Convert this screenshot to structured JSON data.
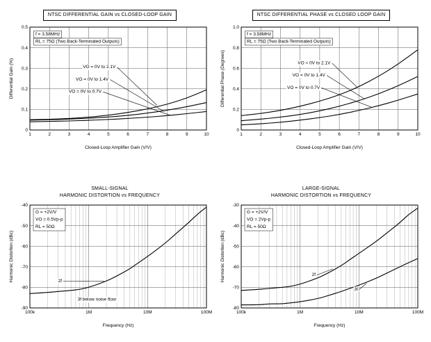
{
  "page": {
    "background": "#ffffff",
    "text_color": "#000000",
    "grid_color": "#555555",
    "curve_color": "#000000"
  },
  "chart_data": [
    {
      "type": "line",
      "title": "NTSC DIFFERENTIAL GAIN vs CLOSED-LOOP GAIN",
      "xlabel": "Closed-Loop Amplifier Gain (V/V)",
      "ylabel": "Differential Gain (%)",
      "x_scale": "linear",
      "xlim": [
        1,
        10
      ],
      "ylim": [
        0,
        0.5
      ],
      "xticks": [
        1,
        2,
        3,
        4,
        5,
        6,
        7,
        8,
        9,
        10
      ],
      "xtick_labels": [
        "1",
        "2",
        "3",
        "4",
        "5",
        "6",
        "7",
        "8",
        "9",
        "10"
      ],
      "yticks": [
        0,
        0.1,
        0.2,
        0.3,
        0.4,
        0.5
      ],
      "ytick_labels": [
        "0",
        "0.1",
        "0.2",
        "0.3",
        "0.4",
        "0.5"
      ],
      "grid": true,
      "legend_position": "none",
      "conditions": [
        "f = 3.58MHz",
        "RL = 75Ω (Two Back-Terminated Outputs)"
      ],
      "cond_boxes": "line",
      "series": [
        {
          "name": "VO = 0V to 2.1V",
          "x": [
            1,
            2,
            3,
            4,
            5,
            6,
            7,
            8,
            9,
            10
          ],
          "y": [
            0.05,
            0.052,
            0.056,
            0.062,
            0.072,
            0.085,
            0.102,
            0.125,
            0.155,
            0.195
          ]
        },
        {
          "name": "VO = 0V to 1.4V",
          "x": [
            1,
            2,
            3,
            4,
            5,
            6,
            7,
            8,
            9,
            10
          ],
          "y": [
            0.048,
            0.05,
            0.053,
            0.057,
            0.063,
            0.071,
            0.082,
            0.096,
            0.113,
            0.133
          ]
        },
        {
          "name": "VO = 0V to 0.7V",
          "x": [
            1,
            2,
            3,
            4,
            5,
            6,
            7,
            8,
            9,
            10
          ],
          "y": [
            0.04,
            0.042,
            0.044,
            0.047,
            0.051,
            0.056,
            0.062,
            0.07,
            0.079,
            0.09
          ]
        }
      ],
      "labels": [
        {
          "text": "VO = 0V to 2.1V",
          "tx": 0.3,
          "ty": 0.4,
          "px": 0.72,
          "py": 0.76
        },
        {
          "text": "VO = 0V to 1.4V",
          "tx": 0.26,
          "ty": 0.52,
          "px": 0.76,
          "py": 0.82
        },
        {
          "text": "VO = 0V to 0.7V",
          "tx": 0.22,
          "ty": 0.64,
          "px": 0.8,
          "py": 0.86
        }
      ]
    },
    {
      "type": "line",
      "title": "NTSC DIFFERENTIAL PHASE vs CLOSED LOOP GAIN",
      "xlabel": "Closed-Loop Amplifier Gain (V/V)",
      "ylabel": "Differential Phase (Degrees)",
      "x_scale": "linear",
      "xlim": [
        1,
        10
      ],
      "ylim": [
        0,
        1.0
      ],
      "xticks": [
        1,
        2,
        3,
        4,
        5,
        6,
        7,
        8,
        9,
        10
      ],
      "xtick_labels": [
        "1",
        "2",
        "3",
        "4",
        "5",
        "6",
        "7",
        "8",
        "9",
        "10"
      ],
      "yticks": [
        0,
        0.2,
        0.4,
        0.6,
        0.8,
        1.0
      ],
      "ytick_labels": [
        "0",
        "0.2",
        "0.4",
        "0.6",
        "0.8",
        "1.0"
      ],
      "grid": true,
      "legend_position": "none",
      "conditions": [
        "f = 3.58MHz",
        "RL = 75Ω (Two Back-Terminated Outputs)"
      ],
      "cond_boxes": "line",
      "series": [
        {
          "name": "VO = 0V to 2.1V",
          "x": [
            1,
            2,
            3,
            4,
            5,
            6,
            7,
            8,
            9,
            10
          ],
          "y": [
            0.14,
            0.16,
            0.19,
            0.23,
            0.28,
            0.34,
            0.42,
            0.52,
            0.64,
            0.78
          ]
        },
        {
          "name": "VO = 0V to 1.4V",
          "x": [
            1,
            2,
            3,
            4,
            5,
            6,
            7,
            8,
            9,
            10
          ],
          "y": [
            0.09,
            0.105,
            0.125,
            0.15,
            0.185,
            0.23,
            0.285,
            0.35,
            0.43,
            0.52
          ]
        },
        {
          "name": "VO = 0V to 0.7V",
          "x": [
            1,
            2,
            3,
            4,
            5,
            6,
            7,
            8,
            9,
            10
          ],
          "y": [
            0.05,
            0.06,
            0.075,
            0.095,
            0.12,
            0.15,
            0.19,
            0.235,
            0.29,
            0.35
          ]
        }
      ],
      "labels": [
        {
          "text": "VO = 0V to 2.1V",
          "tx": 0.32,
          "ty": 0.36,
          "px": 0.66,
          "py": 0.59
        },
        {
          "text": "VO = 0V to 1.4V",
          "tx": 0.29,
          "ty": 0.48,
          "px": 0.7,
          "py": 0.7
        },
        {
          "text": "VO = 0V to 0.7V",
          "tx": 0.26,
          "ty": 0.6,
          "px": 0.74,
          "py": 0.78
        }
      ]
    },
    {
      "type": "line",
      "title": "SMALL-SIGNAL\nHARMONIC DISTORTION vs FREQUENCY",
      "xlabel": "Frequency (Hz)",
      "ylabel": "Harmonic Distortion (dBc)",
      "x_scale": "log",
      "xlim": [
        100000.0,
        100000000.0
      ],
      "ylim": [
        -90,
        -40
      ],
      "xticks": [
        100000.0,
        1000000.0,
        10000000.0,
        100000000.0
      ],
      "xtick_labels": [
        "100k",
        "1M",
        "10M",
        "100M"
      ],
      "yticks": [
        -90,
        -80,
        -70,
        -60,
        -50,
        -40
      ],
      "ytick_labels": [
        "-90",
        "-80",
        "-70",
        "-60",
        "-50",
        "-40"
      ],
      "grid": true,
      "legend_position": "none",
      "conditions": [
        "G  = +2V/V",
        "VO = 0.5Vp-p",
        "RL = 50Ω"
      ],
      "cond_boxes": "block",
      "series": [
        {
          "name": "2f",
          "x": [
            100000.0,
            200000.0,
            300000.0,
            500000.0,
            700000.0,
            1000000.0,
            2000000.0,
            3000000.0,
            5000000.0,
            7000000.0,
            10000000.0,
            20000000.0,
            30000000.0,
            50000000.0,
            70000000.0,
            100000000.0
          ],
          "y": [
            -83,
            -82.5,
            -82,
            -81.5,
            -81,
            -80,
            -77,
            -74.5,
            -71,
            -68,
            -65,
            -58.5,
            -54,
            -48.5,
            -44.5,
            -41
          ]
        }
      ],
      "labels": [
        {
          "text": "2f",
          "tx": 0.16,
          "ty": 0.75,
          "px": 0.42,
          "py": 0.74
        },
        {
          "text": "3f below noise floor",
          "tx": 0.27,
          "ty": 0.93
        }
      ]
    },
    {
      "type": "line",
      "title": "LARGE-SIGNAL\nHARMONIC DISTORTION vs FREQUENCY",
      "xlabel": "Frequency (Hz)",
      "ylabel": "Harmonic Distortion (dBc)",
      "x_scale": "log",
      "xlim": [
        100000.0,
        100000000.0
      ],
      "ylim": [
        -80,
        -30
      ],
      "xticks": [
        100000.0,
        1000000.0,
        10000000.0,
        100000000.0
      ],
      "xtick_labels": [
        "100k",
        "1M",
        "10M",
        "100M"
      ],
      "yticks": [
        -80,
        -70,
        -60,
        -50,
        -40,
        -30
      ],
      "ytick_labels": [
        "-80",
        "-70",
        "-60",
        "-50",
        "-40",
        "-30"
      ],
      "grid": true,
      "legend_position": "none",
      "conditions": [
        "G  = +2V/V",
        "VO = 2Vp-p",
        "RL = 50Ω"
      ],
      "cond_boxes": "block",
      "series": [
        {
          "name": "2f",
          "x": [
            100000.0,
            200000.0,
            300000.0,
            500000.0,
            700000.0,
            1000000.0,
            2000000.0,
            3000000.0,
            5000000.0,
            7000000.0,
            10000000.0,
            20000000.0,
            30000000.0,
            50000000.0,
            70000000.0,
            100000000.0
          ],
          "y": [
            -71.5,
            -71,
            -70.5,
            -70,
            -69.5,
            -68.5,
            -65.5,
            -63,
            -59.5,
            -56.5,
            -53.5,
            -47.5,
            -43.5,
            -38.5,
            -34.5,
            -31.5
          ]
        },
        {
          "name": "3f",
          "x": [
            100000.0,
            200000.0,
            300000.0,
            500000.0,
            700000.0,
            1000000.0,
            2000000.0,
            3000000.0,
            5000000.0,
            7000000.0,
            10000000.0,
            20000000.0,
            30000000.0,
            50000000.0,
            70000000.0,
            100000000.0
          ],
          "y": [
            -78.5,
            -78.5,
            -78,
            -78,
            -77.5,
            -77,
            -75.5,
            -74,
            -72,
            -70.5,
            -69,
            -65.5,
            -63,
            -60,
            -58,
            -56
          ]
        }
      ],
      "labels": [
        {
          "text": "2f",
          "tx": 0.4,
          "ty": 0.69,
          "px": 0.52,
          "py": 0.62
        },
        {
          "text": "3f",
          "tx": 0.64,
          "ty": 0.83,
          "px": 0.71,
          "py": 0.76
        }
      ]
    }
  ]
}
